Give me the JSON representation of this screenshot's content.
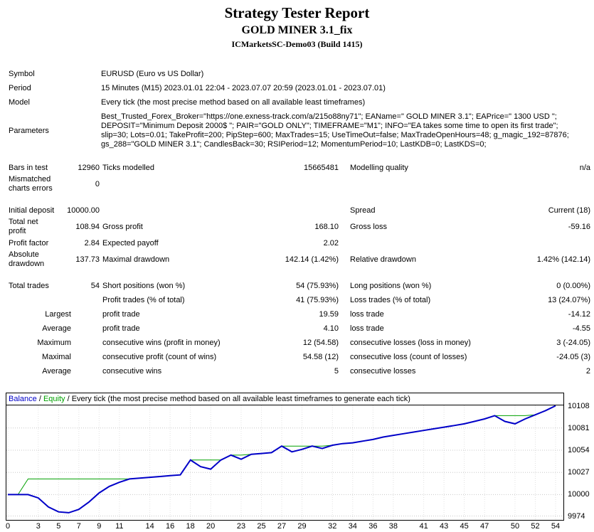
{
  "header": {
    "title": "Strategy Tester Report",
    "expert": "GOLD MINER 3.1_fix",
    "server": "ICMarketsSC-Demo03 (Build 1415)"
  },
  "info": {
    "rows": [
      {
        "label": "Symbol",
        "value": "EURUSD (Euro vs US Dollar)"
      },
      {
        "label": "Period",
        "value": "15 Minutes (M15) 2023.01.01 22:04 - 2023.07.07 20:59 (2023.01.01 - 2023.07.01)"
      },
      {
        "label": "Model",
        "value": "Every tick (the most precise method based on all available least timeframes)"
      },
      {
        "label": "Parameters",
        "value": "Best_Trusted_Forex_Broker=\"https://one.exness-track.com/a/215o88ny71\"; EAName=\" GOLD MINER 3.1\"; EAPrice=\" 1300 USD \"; DEPOSIT=\"Minimum Deposit 2000$ \"; PAIR=\"GOLD ONLY\"; TIMEFRAME=\"M1\"; INFO=\"EA takes some time to open its first trade\"; slip=30; Lots=0.01; TakeProfit=200; PipStep=600; MaxTrades=15; UseTimeOut=false; MaxTradeOpenHours=48; g_magic_192=87876; gs_288=\"GOLD MINER 3.1\"; CandlesBack=30; RSIPeriod=12; MomentumPeriod=10; LastKDB=0; LastKDS=0;"
      }
    ]
  },
  "stats": {
    "rows": [
      {
        "l1": "Bars in test",
        "v1": "12960",
        "l2": "Ticks modelled",
        "v2": "15665481",
        "l3": "Modelling quality",
        "v3": "n/a"
      },
      {
        "l1": "Mismatched charts errors",
        "v1": "0",
        "l2": "",
        "v2": "",
        "l3": "",
        "v3": ""
      },
      {
        "l1": "Initial deposit",
        "v1": "10000.00",
        "l2": "",
        "v2": "",
        "l3": "Spread",
        "v3": "Current (18)"
      },
      {
        "l1": "Total net profit",
        "v1": "108.94",
        "l2": "Gross profit",
        "v2": "168.10",
        "l3": "Gross loss",
        "v3": "-59.16"
      },
      {
        "l1": "Profit factor",
        "v1": "2.84",
        "l2": "Expected payoff",
        "v2": "2.02",
        "l3": "",
        "v3": ""
      },
      {
        "l1": "Absolute drawdown",
        "v1": "137.73",
        "l2": "Maximal drawdown",
        "v2": "142.14 (1.42%)",
        "l3": "Relative drawdown",
        "v3": "1.42% (142.14)"
      },
      {
        "l1": "Total trades",
        "v1": "54",
        "l2": "Short positions (won %)",
        "v2": "54 (75.93%)",
        "l3": "Long positions (won %)",
        "v3": "0 (0.00%)"
      },
      {
        "l1": "",
        "v1": "",
        "l2": "Profit trades (% of total)",
        "v2": "41 (75.93%)",
        "l3": "Loss trades (% of total)",
        "v3": "13 (24.07%)"
      },
      {
        "l1": "Largest",
        "l2": "profit trade",
        "v2": "19.59",
        "l3": "loss trade",
        "v3": "-14.12"
      },
      {
        "l1": "Average",
        "l2": "profit trade",
        "v2": "4.10",
        "l3": "loss trade",
        "v3": "-4.55"
      },
      {
        "l1": "Maximum",
        "l2": "consecutive wins (profit in money)",
        "v2": "12 (54.58)",
        "l3": "consecutive losses (loss in money)",
        "v3": "3 (-24.05)"
      },
      {
        "l1": "Maximal",
        "l2": "consecutive profit (count of wins)",
        "v2": "54.58 (12)",
        "l3": "consecutive loss (count of losses)",
        "v3": "-24.05 (3)"
      },
      {
        "l1": "Average",
        "l2": "consecutive wins",
        "v2": "5",
        "l3": "consecutive losses",
        "v3": "2"
      }
    ]
  },
  "chart": {
    "legend": {
      "balance": "Balance",
      "sep": " / ",
      "equity": "Equity",
      "desc": "Every tick (the most precise method based on all available least timeframes to generate each tick)"
    },
    "colors": {
      "balance": "#0000C8",
      "equity": "#00A000",
      "grid_h": "#C8C8C8",
      "grid_v": "#E2E2E2",
      "border": "#000000"
    },
    "y_ticks": [
      10108,
      10081,
      10054,
      10027,
      10000,
      9974
    ],
    "x_ticks": [
      0,
      3,
      5,
      7,
      9,
      11,
      14,
      16,
      18,
      20,
      23,
      25,
      27,
      29,
      32,
      34,
      36,
      38,
      41,
      43,
      45,
      47,
      50,
      52,
      54
    ]
  },
  "chart_data": {
    "type": "line",
    "title": "Balance / Equity curve",
    "xlabel": "",
    "ylabel": "",
    "xlim": [
      0,
      54
    ],
    "ylim": [
      9974,
      10108
    ],
    "grid": true,
    "legend_position": "top-left",
    "x": [
      0,
      1,
      2,
      3,
      4,
      5,
      6,
      7,
      8,
      9,
      10,
      11,
      12,
      13,
      14,
      15,
      16,
      17,
      18,
      19,
      20,
      21,
      22,
      23,
      24,
      25,
      26,
      27,
      28,
      29,
      30,
      31,
      32,
      33,
      34,
      35,
      36,
      37,
      38,
      39,
      40,
      41,
      42,
      43,
      44,
      45,
      46,
      47,
      48,
      49,
      50,
      51,
      52,
      53,
      54
    ],
    "series": [
      {
        "name": "Balance",
        "color": "#0000C8",
        "values": [
          10000,
          10000,
          10000,
          9996,
          9985,
          9979,
          9978,
          9982,
          9991,
          10002,
          10010,
          10015,
          10019,
          10020,
          10021,
          10022,
          10023,
          10024,
          10042,
          10034,
          10031,
          10042,
          10048,
          10043,
          10049,
          10050,
          10051,
          10059,
          10052,
          10055,
          10059,
          10056,
          10060,
          10062,
          10063,
          10065,
          10067,
          10070,
          10072,
          10074,
          10076,
          10078,
          10080,
          10082,
          10084,
          10086,
          10089,
          10092,
          10096,
          10089,
          10086,
          10092,
          10097,
          10102,
          10108
        ]
      },
      {
        "name": "Equity",
        "color": "#00A000",
        "values": [
          10000,
          10000,
          10019,
          10019,
          10019,
          10019,
          10019,
          10019,
          10019,
          10019,
          10019,
          10019,
          10019,
          10020,
          10021,
          10022,
          10023,
          10024,
          10042,
          10042,
          10042,
          10042,
          10048,
          10048,
          10049,
          10050,
          10051,
          10059,
          10059,
          10059,
          10059,
          10059,
          10060,
          10062,
          10063,
          10065,
          10067,
          10070,
          10072,
          10074,
          10076,
          10078,
          10080,
          10082,
          10084,
          10086,
          10089,
          10092,
          10096,
          10096,
          10096,
          10096,
          10097,
          10102,
          10108
        ]
      }
    ]
  }
}
